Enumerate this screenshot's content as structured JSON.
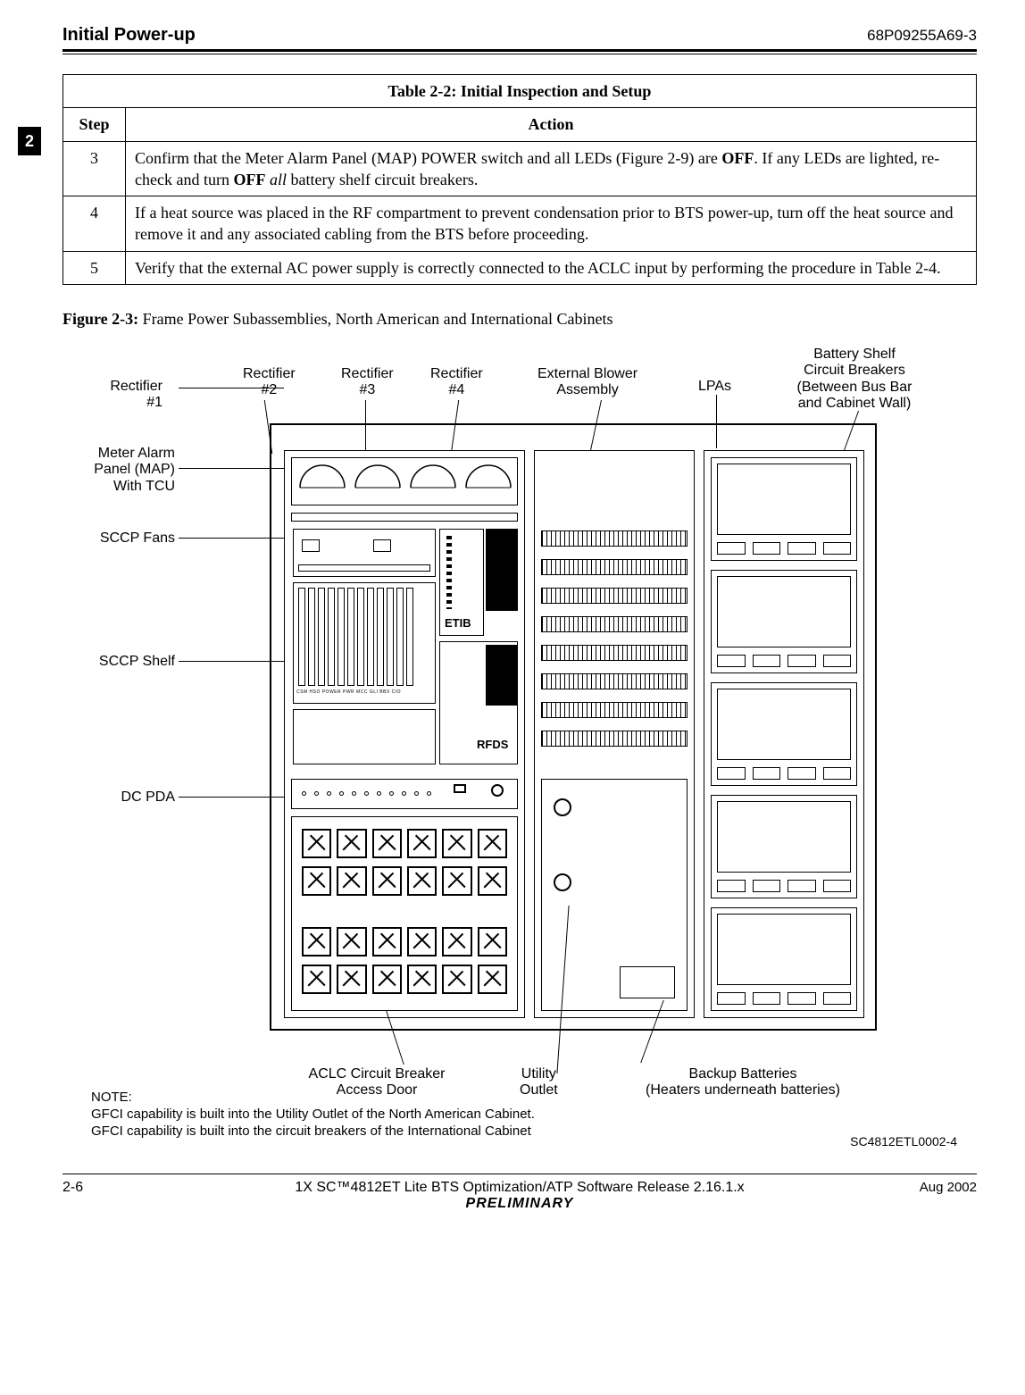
{
  "header": {
    "title": "Initial  Power-up",
    "doc_number": "68P09255A69-3"
  },
  "chapter_tab": "2",
  "table": {
    "caption_prefix": "Table 2-2:",
    "caption_title": " Initial Inspection and Setup",
    "columns": {
      "step": "Step",
      "action": "Action"
    },
    "rows": [
      {
        "step": "3",
        "action_html": "Confirm that the Meter Alarm Panel (MAP) POWER switch and all LEDs (Figure 2-9) are <b>OFF</b>. If any LEDs are lighted, re-check and turn  <b>OFF</b> <i>all</i> battery shelf circuit breakers."
      },
      {
        "step": "4",
        "action_html": "If a heat source was placed in the RF compartment to prevent condensation prior to BTS power-up, turn off the heat source and remove it and any associated cabling from the BTS before proceeding."
      },
      {
        "step": "5",
        "action_html": "Verify that the external AC power supply is correctly connected to the ACLC input by performing the procedure in Table 2-4."
      }
    ]
  },
  "figure": {
    "caption_prefix": "Figure 2-3:",
    "caption_title": " Frame Power Subassemblies, North American and International Cabinets",
    "labels": {
      "rect1": "Rectifier\n#1",
      "rect2": "Rectifier\n#2",
      "rect3": "Rectifier\n#3",
      "rect4": "Rectifier\n#4",
      "ext_blower": "External Blower\nAssembly",
      "lpas": "LPAs",
      "batt_breakers": "Battery Shelf\nCircuit Breakers\n(Between Bus Bar\nand Cabinet Wall)",
      "map": "Meter Alarm\nPanel (MAP)\nWith TCU",
      "sccp_fans": "SCCP Fans",
      "sccp_shelf": "SCCP Shelf",
      "dc_pda": "DC PDA",
      "etib": "ETIB",
      "rfds": "RFDS",
      "aclc": "ACLC Circuit Breaker\nAccess Door",
      "utility": "Utility\nOutlet",
      "backup": "Backup Batteries\n(Heaters underneath batteries)"
    },
    "note_label": "NOTE:",
    "note_lines": [
      "GFCI capability is built into the Utility Outlet of the North American Cabinet.",
      "GFCI capability is built into the circuit breakers of the International Cabinet"
    ],
    "ref": "SC4812ETL0002-4"
  },
  "footer": {
    "page": "2-6",
    "center_line": "1X SC™4812ET Lite BTS Optimization/ATP Software Release 2.16.1.x",
    "preliminary": "PRELIMINARY",
    "date": "Aug 2002"
  }
}
